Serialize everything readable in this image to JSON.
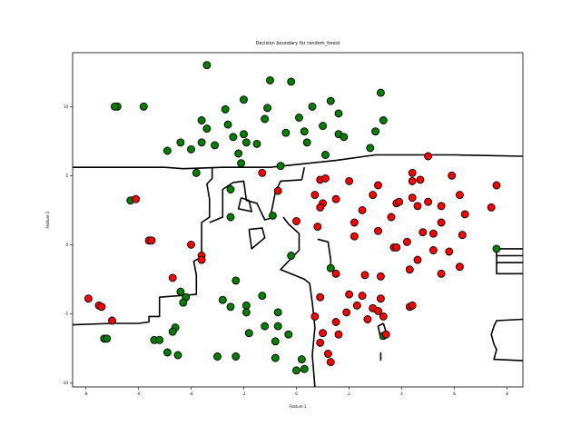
{
  "chart_data": {
    "type": "scatter",
    "title": "Decision boundary for random_forest",
    "xlabel": "Feature 1",
    "ylabel": "Feature 2",
    "xlim": [
      -8.5,
      8.6
    ],
    "ylim": [
      -10.3,
      13.9
    ],
    "xticks": [
      -8,
      -6,
      -4,
      -2,
      0,
      2,
      4,
      6,
      8
    ],
    "xtick_labels": [
      "-8",
      "-6",
      "-4",
      "-2",
      "0",
      "2",
      "4",
      "6",
      "8"
    ],
    "yticks": [
      -10,
      -5,
      0,
      5,
      10
    ],
    "ytick_labels": [
      "-10",
      "-5",
      "0",
      "5",
      "10"
    ],
    "grid": false,
    "legend": "none",
    "colors": {
      "class_green": "#007f00",
      "class_red": "#ff0000",
      "boundary": "#000000",
      "marker_edge": "#000000"
    },
    "boundary": [
      [
        [
          -8.5,
          5.6
        ],
        [
          -5.0,
          5.6
        ],
        [
          -4.3,
          5.5
        ],
        [
          -2.8,
          5.6
        ],
        [
          -1.0,
          5.6
        ],
        [
          1.5,
          6.1
        ],
        [
          3.0,
          6.5
        ],
        [
          6.0,
          6.5
        ],
        [
          8.6,
          6.4
        ]
      ],
      [
        [
          -8.5,
          -5.8
        ],
        [
          -7.0,
          -5.7
        ],
        [
          -6.0,
          -5.7
        ],
        [
          -5.6,
          -5.6
        ],
        [
          -5.6,
          -5.2
        ],
        [
          -5.2,
          -5.2
        ],
        [
          -5.2,
          -3.8
        ],
        [
          -3.8,
          -3.6
        ],
        [
          -3.8,
          -2.2
        ],
        [
          -3.9,
          -1.2
        ],
        [
          -3.6,
          -0.9
        ],
        [
          -3.6,
          1.6
        ],
        [
          -3.3,
          2.0
        ],
        [
          -3.3,
          3.3
        ],
        [
          -3.4,
          4.4
        ],
        [
          -3.2,
          4.8
        ],
        [
          -3.2,
          5.6
        ]
      ],
      [
        [
          -3.3,
          1.6
        ],
        [
          -2.8,
          2.0
        ],
        [
          -2.8,
          4.0
        ],
        [
          -2.4,
          4.5
        ],
        [
          -2.0,
          4.6
        ],
        [
          -1.9,
          3.2
        ],
        [
          -1.5,
          3.0
        ],
        [
          -1.2,
          1.8
        ],
        [
          -1.0,
          1.9
        ],
        [
          -0.8,
          3.8
        ],
        [
          -0.6,
          4.6
        ],
        [
          0.2,
          4.7
        ],
        [
          0.3,
          5.6
        ]
      ],
      [
        [
          -0.5,
          2.0
        ],
        [
          -0.3,
          1.5
        ],
        [
          0.1,
          0.8
        ],
        [
          0.1,
          -0.4
        ],
        [
          -0.3,
          -1.2
        ],
        [
          -0.6,
          -1.8
        ],
        [
          0.3,
          -2.5
        ],
        [
          0.5,
          -2.8
        ],
        [
          0.6,
          -4.2
        ],
        [
          0.7,
          -6.0
        ],
        [
          0.6,
          -8.0
        ],
        [
          0.7,
          -10.3
        ]
      ],
      [
        [
          0.8,
          0.4
        ],
        [
          1.2,
          0.2
        ],
        [
          1.3,
          -1.1
        ],
        [
          1.3,
          -1.8
        ],
        [
          1.5,
          -2.0
        ]
      ],
      [
        [
          -1.8,
          1.1
        ],
        [
          -1.3,
          1.2
        ],
        [
          -1.2,
          0.5
        ],
        [
          -1.7,
          -0.3
        ],
        [
          -1.8,
          1.1
        ]
      ],
      [
        [
          -2.1,
          3.4
        ],
        [
          -1.8,
          3.2
        ],
        [
          -1.7,
          2.4
        ],
        [
          -2.2,
          2.6
        ],
        [
          -2.1,
          3.4
        ]
      ],
      [
        [
          3.3,
          -5.7
        ],
        [
          3.4,
          -6.3
        ],
        [
          3.2,
          -6.8
        ],
        [
          3.1,
          -5.9
        ],
        [
          3.3,
          -5.7
        ]
      ],
      [
        [
          3.2,
          -7.8
        ],
        [
          3.2,
          -8.4
        ]
      ],
      [
        [
          8.6,
          -0.3
        ],
        [
          7.6,
          -0.3
        ],
        [
          7.6,
          -2.1
        ],
        [
          8.6,
          -2.1
        ]
      ],
      [
        [
          8.6,
          -5.4
        ],
        [
          7.6,
          -5.5
        ],
        [
          7.5,
          -5.9
        ],
        [
          7.4,
          -6.5
        ],
        [
          7.5,
          -7.2
        ],
        [
          7.6,
          -7.6
        ],
        [
          7.5,
          -8.3
        ],
        [
          8.6,
          -8.4
        ]
      ],
      [
        [
          7.6,
          -0.8
        ],
        [
          8.6,
          -0.8
        ]
      ],
      [
        [
          7.6,
          -1.3
        ],
        [
          8.6,
          -1.3
        ]
      ]
    ],
    "series": [
      {
        "class": "green",
        "points": [
          [
            -3.4,
            13.0
          ],
          [
            -1.0,
            11.9
          ],
          [
            -0.2,
            11.8
          ],
          [
            -6.8,
            10.0
          ],
          [
            -5.8,
            10.0
          ],
          [
            -6.9,
            10.0
          ],
          [
            -2.0,
            10.5
          ],
          [
            -1.1,
            9.9
          ],
          [
            1.3,
            10.4
          ],
          [
            3.2,
            11.0
          ],
          [
            -3.6,
            9.0
          ],
          [
            -3.4,
            8.4
          ],
          [
            -2.7,
            9.8
          ],
          [
            -2.6,
            8.7
          ],
          [
            -2.4,
            7.8
          ],
          [
            -1.2,
            9.1
          ],
          [
            0.1,
            9.2
          ],
          [
            0.6,
            10.0
          ],
          [
            1.6,
            9.5
          ],
          [
            3.3,
            9.0
          ],
          [
            3.0,
            8.2
          ],
          [
            1.0,
            8.6
          ],
          [
            -2.0,
            8.0
          ],
          [
            -1.5,
            7.3
          ],
          [
            -2.2,
            6.6
          ],
          [
            -3.1,
            7.2
          ],
          [
            -3.6,
            7.4
          ],
          [
            -4.4,
            7.4
          ],
          [
            -4.0,
            6.9
          ],
          [
            -4.9,
            6.8
          ],
          [
            -1.9,
            7.4
          ],
          [
            0.3,
            8.2
          ],
          [
            0.4,
            7.4
          ],
          [
            -0.4,
            8.1
          ],
          [
            1.6,
            8.0
          ],
          [
            1.8,
            7.8
          ],
          [
            2.8,
            7.0
          ],
          [
            1.1,
            6.5
          ],
          [
            -2.1,
            5.9
          ],
          [
            -3.8,
            5.2
          ],
          [
            -0.6,
            5.7
          ],
          [
            -6.3,
            3.2
          ],
          [
            -2.5,
            4.0
          ],
          [
            -2.5,
            2.0
          ],
          [
            -0.9,
            2.1
          ],
          [
            -0.2,
            -0.8
          ],
          [
            1.3,
            -1.7
          ],
          [
            -2.3,
            -2.6
          ],
          [
            -4.4,
            -3.4
          ],
          [
            -4.2,
            -3.8
          ],
          [
            -4.3,
            -4.2
          ],
          [
            -2.8,
            -4.0
          ],
          [
            -1.9,
            -4.4
          ],
          [
            -2.5,
            -4.5
          ],
          [
            -1.9,
            -4.9
          ],
          [
            -1.3,
            -3.7
          ],
          [
            -0.7,
            -4.9
          ],
          [
            -4.6,
            -6.0
          ],
          [
            -4.7,
            -6.3
          ],
          [
            -5.4,
            -6.9
          ],
          [
            -5.2,
            -6.9
          ],
          [
            -7.3,
            -6.8
          ],
          [
            -7.2,
            -6.8
          ],
          [
            -1.2,
            -5.9
          ],
          [
            -0.7,
            -5.9
          ],
          [
            -1.8,
            -6.4
          ],
          [
            -0.3,
            -6.5
          ],
          [
            -0.8,
            -7.0
          ],
          [
            -4.9,
            -7.8
          ],
          [
            -4.5,
            -8.0
          ],
          [
            -3.0,
            -8.1
          ],
          [
            -2.3,
            -8.1
          ],
          [
            -0.8,
            -8.2
          ],
          [
            0.2,
            -8.3
          ],
          [
            0.0,
            -9.1
          ],
          [
            0.3,
            -9.0
          ],
          [
            3.3,
            -6.6
          ],
          [
            7.6,
            -0.3
          ]
        ]
      },
      {
        "class": "red",
        "points": [
          [
            5.0,
            6.4
          ],
          [
            4.4,
            5.2
          ],
          [
            4.4,
            4.6
          ],
          [
            4.7,
            4.7
          ],
          [
            5.9,
            5.0
          ],
          [
            7.6,
            4.3
          ],
          [
            -1.3,
            5.2
          ],
          [
            -0.7,
            3.9
          ],
          [
            0.9,
            4.7
          ],
          [
            1.1,
            4.8
          ],
          [
            0.7,
            3.6
          ],
          [
            2.0,
            4.6
          ],
          [
            3.1,
            4.3
          ],
          [
            2.9,
            3.6
          ],
          [
            1.5,
            3.3
          ],
          [
            1.0,
            3.0
          ],
          [
            0.9,
            2.7
          ],
          [
            0.8,
            1.3
          ],
          [
            0.0,
            1.7
          ],
          [
            2.5,
            2.5
          ],
          [
            2.2,
            1.6
          ],
          [
            3.8,
            3.0
          ],
          [
            3.9,
            3.1
          ],
          [
            4.4,
            3.4
          ],
          [
            4.6,
            2.8
          ],
          [
            5.0,
            3.1
          ],
          [
            5.5,
            2.8
          ],
          [
            5.5,
            1.6
          ],
          [
            6.2,
            3.6
          ],
          [
            6.4,
            2.2
          ],
          [
            7.4,
            2.7
          ],
          [
            3.6,
            2.0
          ],
          [
            2.2,
            0.6
          ],
          [
            3.1,
            1.0
          ],
          [
            4.8,
            0.9
          ],
          [
            5.2,
            0.8
          ],
          [
            6.3,
            0.7
          ],
          [
            4.2,
            0.2
          ],
          [
            3.7,
            -0.2
          ],
          [
            3.8,
            -0.2
          ],
          [
            5.2,
            -0.4
          ],
          [
            5.8,
            -0.5
          ],
          [
            -6.1,
            3.3
          ],
          [
            -5.6,
            0.3
          ],
          [
            -5.5,
            0.3
          ],
          [
            -4.0,
            0.0
          ],
          [
            -3.6,
            -0.8
          ],
          [
            -3.6,
            -1.1
          ],
          [
            -4.7,
            -2.4
          ],
          [
            -7.9,
            -3.9
          ],
          [
            -7.5,
            -4.4
          ],
          [
            -7.4,
            -4.5
          ],
          [
            -7.0,
            -5.5
          ],
          [
            1.5,
            -2.1
          ],
          [
            2.6,
            -2.2
          ],
          [
            3.2,
            -2.3
          ],
          [
            4.3,
            -1.8
          ],
          [
            6.2,
            -1.6
          ],
          [
            5.5,
            -2.1
          ],
          [
            4.6,
            -1.1
          ],
          [
            0.7,
            -5.2
          ],
          [
            0.9,
            -3.8
          ],
          [
            2.0,
            -3.6
          ],
          [
            2.5,
            -3.7
          ],
          [
            3.2,
            -3.9
          ],
          [
            2.3,
            -4.4
          ],
          [
            1.9,
            -4.9
          ],
          [
            2.9,
            -4.6
          ],
          [
            3.1,
            -4.8
          ],
          [
            3.3,
            -5.2
          ],
          [
            2.7,
            -5.4
          ],
          [
            1.5,
            -5.6
          ],
          [
            1.0,
            -6.4
          ],
          [
            1.6,
            -6.5
          ],
          [
            0.9,
            -7.1
          ],
          [
            1.2,
            -7.9
          ],
          [
            1.3,
            -8.5
          ],
          [
            4.3,
            -4.5
          ],
          [
            4.4,
            -4.4
          ],
          [
            3.4,
            -6.5
          ]
        ]
      }
    ]
  }
}
